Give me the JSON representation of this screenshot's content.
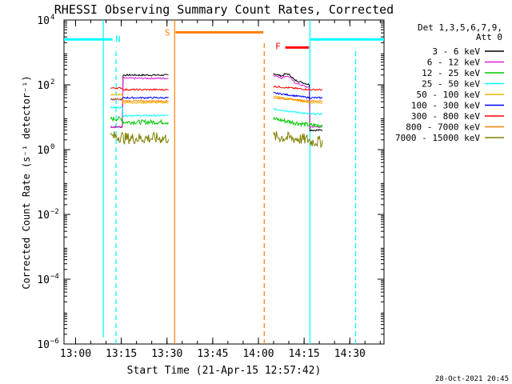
{
  "chart_data": {
    "type": "line",
    "title": "RHESSI Observing Summary Count Rates, Corrected",
    "xlabel": "Start Time (21-Apr-15 12:57:42)",
    "ylabel": "Corrected Count Rate (s⁻¹ detector⁻¹)",
    "y_scale": "log",
    "xlim": [
      -0.03,
      1.72
    ],
    "ylim_exp": [
      -6,
      4
    ],
    "x_ticks": [
      {
        "v": 0.0333,
        "label": "13:00"
      },
      {
        "v": 0.2833,
        "label": "13:15"
      },
      {
        "v": 0.5333,
        "label": "13:30"
      },
      {
        "v": 0.7833,
        "label": "13:45"
      },
      {
        "v": 1.0333,
        "label": "14:00"
      },
      {
        "v": 1.2833,
        "label": "14:15"
      },
      {
        "v": 1.5333,
        "label": "14:30"
      }
    ],
    "y_ticks": [
      {
        "exp": -6,
        "label": "10",
        "sup": "−6"
      },
      {
        "exp": -4,
        "label": "10",
        "sup": "−4"
      },
      {
        "exp": -2,
        "label": "10",
        "sup": "−2"
      },
      {
        "exp": 0,
        "label": "10",
        "sup": "0"
      },
      {
        "exp": 2,
        "label": "10",
        "sup": "2"
      },
      {
        "exp": 4,
        "label": "10",
        "sup": "4"
      }
    ],
    "legend_header": [
      "Det 1,3,5,6,7,9,",
      "Att 0"
    ],
    "legend_position": "right",
    "series": [
      {
        "name": "3 - 6 keV",
        "color": "#000000",
        "seg1_start": 0.7,
        "seg1_end": 2.3,
        "seg2_start": 2.35,
        "seg2_end": 2.0,
        "seg2_tail": 0.6
      },
      {
        "name": "6 - 12 keV",
        "color": "#e01ee0",
        "seg1_start": 0.7,
        "seg1_end": 2.2,
        "seg2_start": 2.3,
        "seg2_end": 1.9,
        "seg2_tail": 0.7
      },
      {
        "name": "12 - 25 keV",
        "color": "#00c800",
        "seg1_start": 0.95,
        "seg1_end": 0.85,
        "seg2_start": 0.95,
        "seg2_end": 0.75,
        "seg2_tail": 0.75
      },
      {
        "name": "25 - 50 keV",
        "color": "#00ffff",
        "seg1_start": 1.3,
        "seg1_end": 1.05,
        "seg2_start": 1.25,
        "seg2_end": 1.1,
        "seg2_tail": 1.1
      },
      {
        "name": "50 - 100 keV",
        "color": "#f0b400",
        "seg1_start": 1.7,
        "seg1_end": 1.45,
        "seg2_start": 1.65,
        "seg2_end": 1.45,
        "seg2_tail": 1.45
      },
      {
        "name": "100 - 300 keV",
        "color": "#0000ff",
        "seg1_start": 1.55,
        "seg1_end": 1.6,
        "seg2_start": 1.75,
        "seg2_end": 1.6,
        "seg2_tail": 1.6
      },
      {
        "name": "300 - 800 keV",
        "color": "#ff0000",
        "seg1_start": 1.9,
        "seg1_end": 1.85,
        "seg2_start": 1.95,
        "seg2_end": 1.85,
        "seg2_tail": 1.85
      },
      {
        "name": "800 - 7000 keV",
        "color": "#ff8000",
        "seg1_start": 1.55,
        "seg1_end": 1.5,
        "seg2_start": 1.6,
        "seg2_end": 1.5,
        "seg2_tail": 1.5
      },
      {
        "name": "7000 - 15000 keV",
        "color": "#808000",
        "seg1_start": 0.4,
        "seg1_end": 0.35,
        "seg2_start": 0.4,
        "seg2_end": 0.3,
        "seg2_tail": 0.25
      }
    ],
    "segments": [
      {
        "x0": 0.225,
        "x1": 0.545
      },
      {
        "x0": 1.115,
        "x1": 1.385
      }
    ],
    "vertical_lines": [
      {
        "v": 0.185,
        "color": "#00ffff",
        "dash": "none",
        "y_exp_bottom": -5.8,
        "y_exp_top": 4
      },
      {
        "v": 0.255,
        "color": "#00ffff",
        "dash": "dashed",
        "y_exp_bottom": -6,
        "y_exp_top": 3.15
      },
      {
        "v": 0.575,
        "color": "#ff8000",
        "dash": "none",
        "y_exp_bottom": -6,
        "y_exp_top": 4
      },
      {
        "v": 1.065,
        "color": "#ff8000",
        "dash": "dashed",
        "y_exp_bottom": -6,
        "y_exp_top": 3.3
      },
      {
        "v": 1.315,
        "color": "#00ffff",
        "dash": "none",
        "y_exp_bottom": -6,
        "y_exp_top": 4
      },
      {
        "v": 1.565,
        "color": "#00ffff",
        "dash": "dashed",
        "y_exp_bottom": -6,
        "y_exp_top": 3.15
      }
    ],
    "annotation_bars": [
      {
        "label": "N",
        "color": "#00ffff",
        "x0": -0.03,
        "x1": 0.235,
        "y_exp": 3.4,
        "label_x": 0.265,
        "label_y_exp": 3.42
      },
      {
        "label": "S",
        "color": "#ff8000",
        "x0": 0.58,
        "x1": 1.06,
        "y_exp": 3.62,
        "label_x": 0.535,
        "label_y_exp": 3.62
      },
      {
        "label": "F",
        "color": "#ff0000",
        "x0": 1.18,
        "x1": 1.31,
        "y_exp": 3.15,
        "label_x": 1.14,
        "label_y_exp": 3.2
      },
      {
        "label": "",
        "color": "#00ffff",
        "x0": 1.315,
        "x1": 1.72,
        "y_exp": 3.4
      }
    ],
    "timestamp": "28-Oct-2021 20:45"
  }
}
